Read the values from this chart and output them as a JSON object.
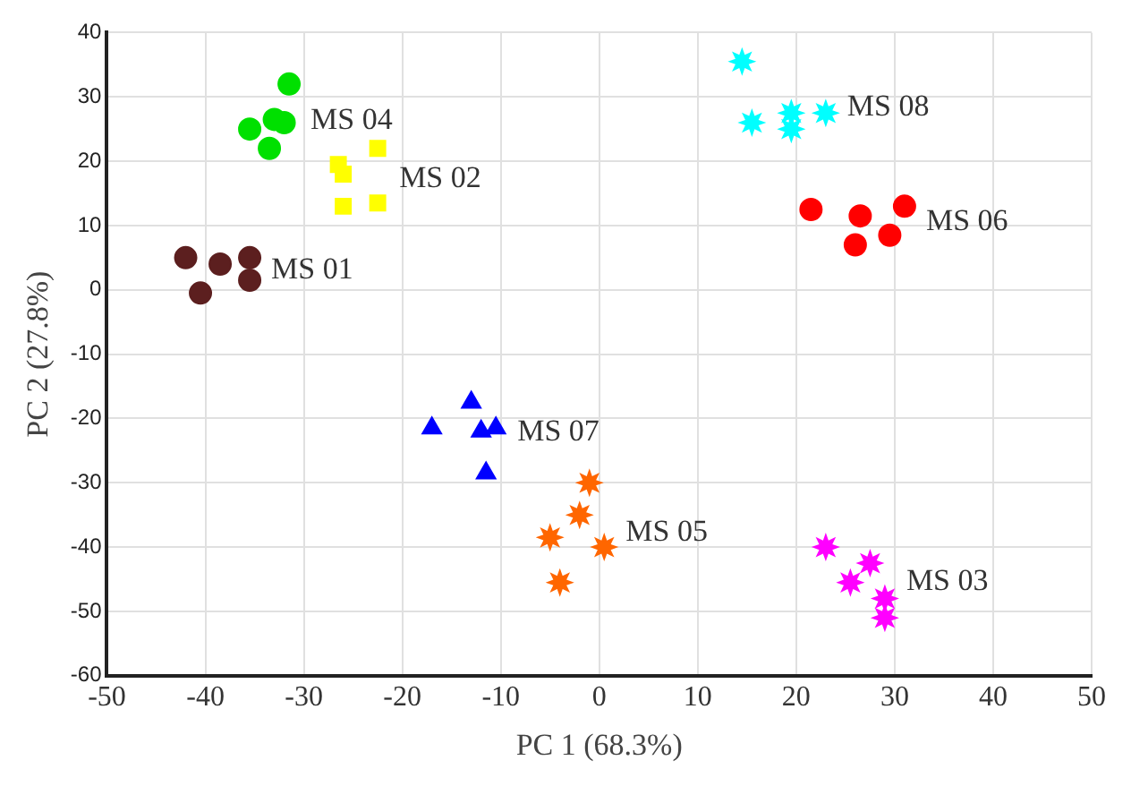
{
  "chart_data": {
    "type": "scatter",
    "xlabel": "PC 1 (68.3%)",
    "ylabel": "PC 2 (27.8%)",
    "xlim": [
      -50,
      50
    ],
    "ylim": [
      -60,
      40
    ],
    "xticks": [
      -50,
      -40,
      -30,
      -20,
      -10,
      0,
      10,
      20,
      30,
      40,
      50
    ],
    "yticks": [
      -60,
      -50,
      -40,
      -30,
      -20,
      -10,
      0,
      10,
      20,
      30,
      40
    ],
    "grid": true,
    "legend": false,
    "series": [
      {
        "name": "MS 01",
        "color": "#5c1f1f",
        "marker": "circle",
        "x": [
          -42,
          -38.5,
          -35.5,
          -40.5,
          -35.5
        ],
        "values": [
          5,
          4,
          5,
          -0.5,
          1.5
        ]
      },
      {
        "name": "MS 04",
        "color": "#00e000",
        "marker": "circle",
        "x": [
          -31.5,
          -35.5,
          -33,
          -32,
          -33.5
        ],
        "values": [
          32,
          25,
          26.5,
          26,
          22
        ]
      },
      {
        "name": "MS 02",
        "color": "#ffff00",
        "marker": "square",
        "x": [
          -26.5,
          -26,
          -22.5,
          -26,
          -22.5
        ],
        "values": [
          19.5,
          18,
          22,
          13,
          13.5
        ]
      },
      {
        "name": "MS 08",
        "color": "#00ffff",
        "marker": "star",
        "x": [
          14.5,
          15.5,
          19.5,
          19.5,
          23
        ],
        "values": [
          35.5,
          26,
          27.5,
          25,
          27.5
        ]
      },
      {
        "name": "MS 06",
        "color": "#ff0000",
        "marker": "circle",
        "x": [
          21.5,
          26.5,
          31,
          26,
          29.5
        ],
        "values": [
          12.5,
          11.5,
          13,
          7,
          8.5
        ]
      },
      {
        "name": "MS 07",
        "color": "#0000ff",
        "marker": "triangle",
        "x": [
          -17,
          -13,
          -12,
          -10.5,
          -11.5
        ],
        "values": [
          -21.5,
          -17.5,
          -22,
          -21.5,
          -28.5
        ]
      },
      {
        "name": "MS 05",
        "color": "#ff6600",
        "marker": "star",
        "x": [
          -1,
          -2,
          -5,
          0.5,
          -4
        ],
        "values": [
          -30,
          -35,
          -38.5,
          -40,
          -45.5
        ]
      },
      {
        "name": "MS 03",
        "color": "#ff00ff",
        "marker": "star",
        "x": [
          23,
          27.5,
          25.5,
          29,
          29
        ],
        "values": [
          -40,
          -42.5,
          -45.5,
          -48,
          -51
        ]
      }
    ]
  }
}
